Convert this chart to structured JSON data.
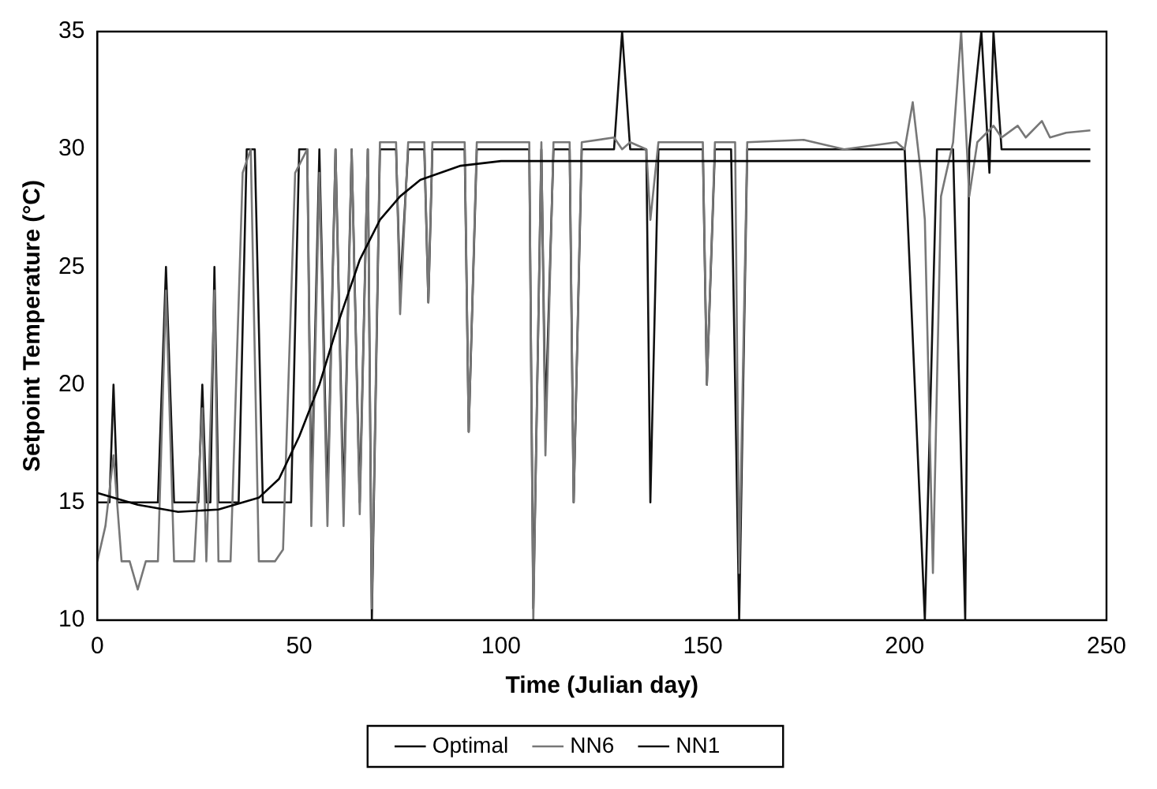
{
  "chart_data": {
    "type": "line",
    "xlabel": "Time (Julian day)",
    "ylabel": "Setpoint Temperature (°C)",
    "xlim": [
      0,
      250
    ],
    "xticks": [
      0,
      50,
      100,
      150,
      200,
      250
    ],
    "ylim": [
      10,
      35
    ],
    "yticks": [
      10,
      15,
      20,
      25,
      30,
      35
    ],
    "grid": false,
    "legend": "bottom",
    "marker": "none",
    "line_style": "solid",
    "series": [
      {
        "name": "Optimal",
        "color": "#000000",
        "x": [
          0,
          10,
          20,
          30,
          40,
          45,
          50,
          55,
          60,
          65,
          70,
          75,
          80,
          90,
          100,
          120,
          246
        ],
        "values": [
          15.4,
          14.9,
          14.6,
          14.7,
          15.2,
          16,
          17.8,
          20,
          22.8,
          25.3,
          27,
          28,
          28.7,
          29.3,
          29.5,
          29.5,
          29.5
        ]
      },
      {
        "name": "NN6",
        "color": "#777777",
        "x": [
          0,
          2,
          4,
          6,
          8,
          10,
          12,
          15,
          17,
          19,
          24,
          26,
          27,
          29,
          30,
          33,
          36,
          38,
          40,
          44,
          46,
          49,
          52,
          53,
          55,
          57,
          59,
          61,
          63,
          65,
          67,
          68,
          70,
          74,
          75,
          77,
          81,
          82,
          83,
          91,
          92,
          94,
          107,
          108,
          110,
          111,
          113,
          117,
          118,
          120,
          128,
          130,
          132,
          136,
          137,
          139,
          150,
          151,
          153,
          158,
          159,
          161,
          175,
          185,
          198,
          200,
          202,
          204,
          205,
          207,
          209,
          212,
          214,
          216,
          218,
          222,
          224,
          228,
          230,
          234,
          236,
          240,
          246
        ],
        "values": [
          12.5,
          14,
          17,
          12.5,
          12.5,
          11.3,
          12.5,
          12.5,
          24,
          12.5,
          12.5,
          19,
          12.5,
          24,
          12.5,
          12.5,
          29,
          30,
          12.5,
          12.5,
          13,
          29,
          30,
          14,
          29,
          14,
          30,
          14,
          30,
          14.5,
          30,
          10.5,
          30.3,
          30.3,
          23,
          30.3,
          30.3,
          23.5,
          30.3,
          30.3,
          18,
          30.3,
          30.3,
          10,
          30.3,
          17,
          30.3,
          30.3,
          15,
          30.3,
          30.5,
          30,
          30.3,
          30,
          27,
          30.3,
          30.3,
          20,
          30.3,
          30.3,
          12,
          30.3,
          30.4,
          30,
          30.3,
          30,
          32,
          29,
          27,
          12,
          28,
          30.3,
          35,
          28,
          30.3,
          31,
          30.5,
          31,
          30.5,
          31.2,
          30.5,
          30.7,
          30.8
        ]
      },
      {
        "name": "NN1",
        "color": "#111111",
        "x": [
          0,
          3,
          4,
          5,
          15,
          17,
          19,
          25,
          26,
          27,
          28,
          29,
          30,
          35,
          37,
          39,
          41,
          48,
          50,
          52,
          53,
          55,
          57,
          59,
          61,
          63,
          65,
          67,
          68,
          70,
          74,
          75,
          77,
          81,
          82,
          83,
          91,
          92,
          94,
          107,
          108,
          110,
          111,
          113,
          117,
          118,
          120,
          128,
          130,
          132,
          136,
          137,
          139,
          150,
          151,
          153,
          157,
          159,
          161,
          200,
          205,
          208,
          212,
          215,
          216,
          219,
          221,
          222,
          224,
          246
        ],
        "values": [
          15,
          15,
          20,
          15,
          15,
          25,
          15,
          15,
          20,
          15,
          15,
          25,
          15,
          15,
          30,
          30,
          15,
          15,
          30,
          30,
          15,
          30,
          15,
          30,
          15,
          30,
          15,
          30,
          10,
          30,
          30,
          24,
          30,
          30,
          23.5,
          30,
          30,
          18,
          30,
          30,
          10.5,
          30,
          18.5,
          30,
          30,
          15,
          30,
          30,
          35,
          30,
          30,
          15,
          30,
          30,
          20,
          30,
          30,
          10,
          30,
          30,
          10,
          30,
          30,
          10,
          30,
          35,
          29,
          35,
          30,
          30
        ]
      }
    ]
  }
}
